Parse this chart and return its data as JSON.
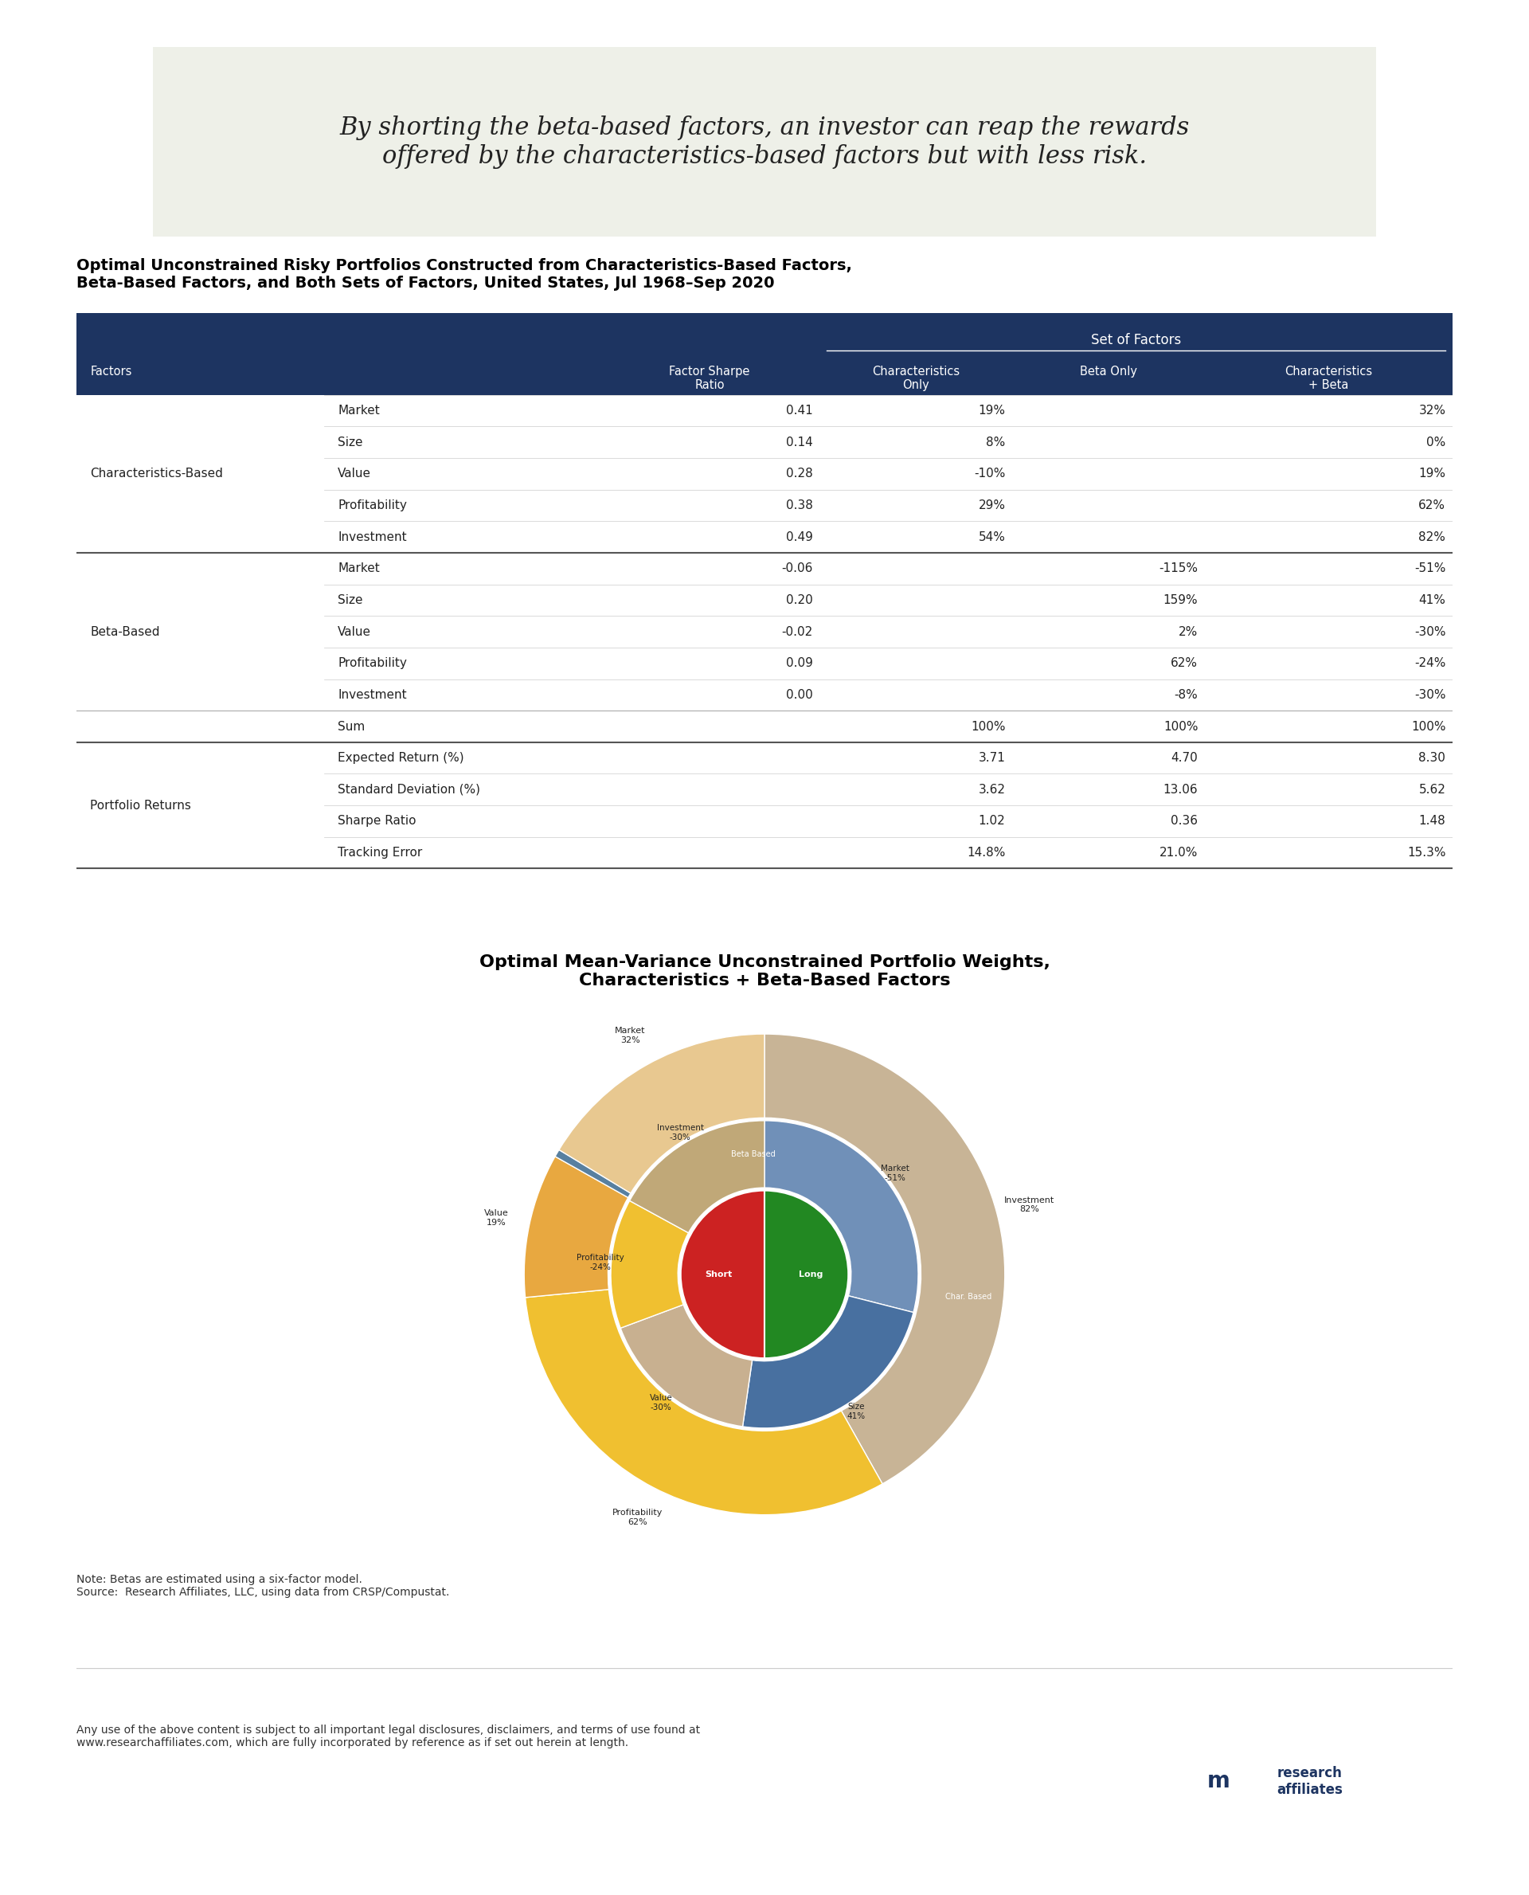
{
  "background_color": "#ffffff",
  "quote_bg_color": "#eef0e8",
  "quote_text": "By shorting the beta-based factors, an investor can reap the rewards\noffered by the characteristics-based factors but with less risk.",
  "table_title": "Optimal Unconstrained Risky Portfolios Constructed from Characteristics-Based Factors,\nBeta-Based Factors, and Both Sets of Factors, United States, Jul 1968–Sep 2020",
  "header_bg_color": "#1d3461",
  "header_text_color": "#ffffff",
  "table_border_color": "#aaaaaa",
  "table_alt_color": "#f5f5f5",
  "table_data": [
    [
      "Characteristics-Based",
      "Market",
      "0.41",
      "19%",
      "",
      "32%"
    ],
    [
      "",
      "Size",
      "0.14",
      "8%",
      "",
      "0%"
    ],
    [
      "",
      "Value",
      "0.28",
      "-10%",
      "",
      "19%"
    ],
    [
      "",
      "Profitability",
      "0.38",
      "29%",
      "",
      "62%"
    ],
    [
      "",
      "Investment",
      "0.49",
      "54%",
      "",
      "82%"
    ],
    [
      "Beta-Based",
      "Market",
      "-0.06",
      "",
      "-115%",
      "-51%"
    ],
    [
      "",
      "Size",
      "0.20",
      "",
      "159%",
      "41%"
    ],
    [
      "",
      "Value",
      "-0.02",
      "",
      "2%",
      "-30%"
    ],
    [
      "",
      "Profitability",
      "0.09",
      "",
      "62%",
      "-24%"
    ],
    [
      "",
      "Investment",
      "0.00",
      "",
      "-8%",
      "-30%"
    ],
    [
      "",
      "Sum",
      "",
      "100%",
      "100%",
      "100%"
    ],
    [
      "Portfolio Returns",
      "Expected Return (%)",
      "",
      "3.71",
      "4.70",
      "8.30"
    ],
    [
      "",
      "Standard Deviation (%)",
      "",
      "3.62",
      "13.06",
      "5.62"
    ],
    [
      "",
      "Sharpe Ratio",
      "",
      "1.02",
      "0.36",
      "1.48"
    ],
    [
      "",
      "Tracking Error",
      "",
      "14.8%",
      "21.0%",
      "15.3%"
    ]
  ],
  "col_headers": [
    "Factors",
    "",
    "Factor Sharpe\nRatio",
    "Characteristics\nOnly",
    "Beta Only",
    "Characteristics\n+ Beta"
  ],
  "chart_title": "Optimal Mean-Variance Unconstrained Portfolio Weights,\nCharacteristics + Beta-Based Factors",
  "pie_note": "Note: Betas are estimated using a six-factor model.\nSource:  Research Affiliates, LLC, using data from CRSP/Compustat.",
  "footer_text": "Any use of the above content is subject to all important legal disclosures, disclaimers, and terms of use found at\nwww.researchaffiliates.com, which are fully incorporated by reference as if set out herein at length.",
  "outer_slices": [
    {
      "label": "Investment\n82%",
      "value": 82,
      "color": "#c8b89a",
      "start_angle": 90
    },
    {
      "label": "Profitability\n62%",
      "value": 62,
      "color": "#f5c842",
      "start_angle": 0
    },
    {
      "label": "Value\n19%",
      "value": 19,
      "color": "#f5c842",
      "start_angle": 0
    },
    {
      "label": "Market\n32%",
      "value": 32,
      "color": "#e8d5b0",
      "start_angle": 0
    },
    {
      "label": "Size\n0%",
      "value": 0,
      "color": "#b0c4d8",
      "start_angle": 0
    }
  ],
  "donut_outer_data": [
    {
      "label": "Investment\n82%",
      "value": 82,
      "color": "#c8b8a0"
    },
    {
      "label": "Profitability\n62%",
      "value": 62,
      "color": "#f5c518"
    },
    {
      "label": "Value\n19%",
      "value": 19,
      "color": "#e8b96e"
    },
    {
      "label": "Market\n32%",
      "value": 32,
      "color": "#e8cfa0"
    },
    {
      "label": "Size\n0%",
      "value": 1,
      "color": "#a8c4d8"
    }
  ],
  "donut_inner_data": [
    {
      "label": "Investment\n-30%",
      "value": 30,
      "color": "#c8b8a0"
    },
    {
      "label": "Profitability\n-24%",
      "value": 24,
      "color": "#f5c518"
    },
    {
      "label": "Value\n-30%",
      "value": 30,
      "color": "#e8b96e"
    },
    {
      "label": "Market\n-51%",
      "value": 51,
      "color": "#b8c8d8"
    },
    {
      "label": "Size\n41%",
      "value": 41,
      "color": "#6090b8"
    }
  ],
  "logo_text": "research\naffiliates"
}
